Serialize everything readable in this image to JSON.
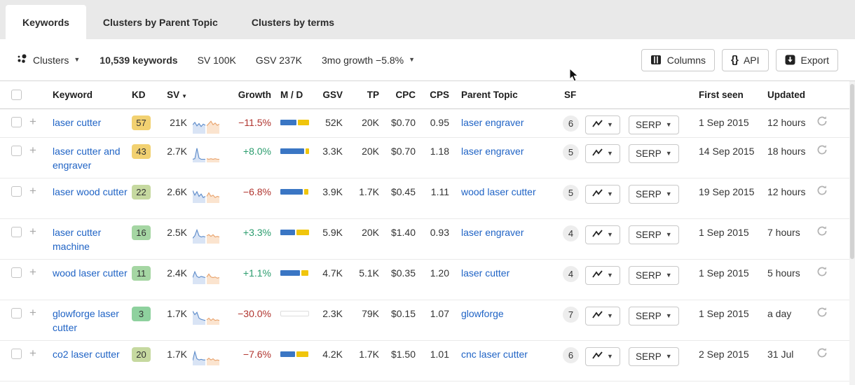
{
  "tabs": [
    {
      "label": "Keywords",
      "active": true
    },
    {
      "label": "Clusters by Parent Topic",
      "active": false
    },
    {
      "label": "Clusters by terms",
      "active": false
    }
  ],
  "toolbar": {
    "clusters_label": "Clusters",
    "keywords_count": "10,539 keywords",
    "sv_total": "SV 100K",
    "gsv_total": "GSV 237K",
    "growth_summary": "3mo growth −5.8%",
    "columns_label": "Columns",
    "api_label": "API",
    "export_label": "Export"
  },
  "table": {
    "serp_label": "SERP",
    "headers": {
      "keyword": "Keyword",
      "kd": "KD",
      "sv": "SV",
      "growth": "Growth",
      "md": "M / D",
      "gsv": "GSV",
      "tp": "TP",
      "cpc": "CPC",
      "cps": "CPS",
      "parent_topic": "Parent Topic",
      "sf": "SF",
      "first_seen": "First seen",
      "updated": "Updated"
    },
    "rows": [
      {
        "keyword": "laser cutter",
        "kd": "57",
        "kd_color": "#f2d171",
        "sv": "21K",
        "growth": "−11.5%",
        "growth_dir": "neg",
        "md": {
          "m": 0.55,
          "d": 0.4
        },
        "gsv": "52K",
        "tp": "20K",
        "cpc": "$0.70",
        "cps": "0.95",
        "parent_topic": "laser engraver",
        "sf": "6",
        "first_seen": "1 Sep 2015",
        "updated": "12 hours",
        "spark": {
          "blue": [
            13,
            17,
            11,
            15,
            10,
            14,
            12
          ],
          "orange": [
            11,
            15,
            19,
            13,
            16,
            12,
            14
          ]
        }
      },
      {
        "keyword": "laser cutter and engraver",
        "kd": "43",
        "kd_color": "#f2d171",
        "sv": "2.7K",
        "growth": "+8.0%",
        "growth_dir": "pos",
        "md": {
          "m": 0.82,
          "d": 0.12
        },
        "gsv": "3.3K",
        "tp": "20K",
        "cpc": "$0.70",
        "cps": "1.18",
        "parent_topic": "laser engraver",
        "sf": "5",
        "first_seen": "14 Sep 2015",
        "updated": "18 hours",
        "spark": {
          "blue": [
            3,
            4,
            22,
            5,
            3,
            3,
            3
          ],
          "orange": [
            4,
            3,
            4,
            3,
            4,
            3,
            3
          ]
        }
      },
      {
        "keyword": "laser wood cutter",
        "kd": "22",
        "kd_color": "#c6d9a0",
        "sv": "2.6K",
        "growth": "−6.8%",
        "growth_dir": "neg",
        "md": {
          "m": 0.78,
          "d": 0.15
        },
        "gsv": "3.9K",
        "tp": "1.7K",
        "cpc": "$0.45",
        "cps": "1.11",
        "parent_topic": "wood laser cutter",
        "sf": "5",
        "first_seen": "19 Sep 2015",
        "updated": "12 hours",
        "spark": {
          "blue": [
            19,
            11,
            17,
            9,
            13,
            7,
            9
          ],
          "orange": [
            9,
            15,
            9,
            11,
            7,
            9,
            8
          ]
        }
      },
      {
        "keyword": "laser cutter machine",
        "kd": "16",
        "kd_color": "#a5d6a3",
        "sv": "2.5K",
        "growth": "+3.3%",
        "growth_dir": "pos",
        "md": {
          "m": 0.52,
          "d": 0.44
        },
        "gsv": "5.9K",
        "tp": "20K",
        "cpc": "$1.40",
        "cps": "0.93",
        "parent_topic": "laser engraver",
        "sf": "4",
        "first_seen": "1 Sep 2015",
        "updated": "7 hours",
        "spark": {
          "blue": [
            7,
            11,
            21,
            11,
            9,
            10,
            9
          ],
          "orange": [
            11,
            13,
            10,
            13,
            9,
            10,
            9
          ]
        }
      },
      {
        "keyword": "wood laser cutter",
        "kd": "11",
        "kd_color": "#a5d6a3",
        "sv": "2.4K",
        "growth": "+1.1%",
        "growth_dir": "pos",
        "md": {
          "m": 0.68,
          "d": 0.25
        },
        "gsv": "4.7K",
        "tp": "5.1K",
        "cpc": "$0.35",
        "cps": "1.20",
        "parent_topic": "laser cutter",
        "sf": "4",
        "first_seen": "1 Sep 2015",
        "updated": "5 hours",
        "spark": {
          "blue": [
            9,
            19,
            11,
            9,
            11,
            10,
            9
          ],
          "orange": [
            10,
            15,
            10,
            9,
            10,
            8,
            9
          ]
        }
      },
      {
        "keyword": "glowforge laser cutter",
        "kd": "3",
        "kd_color": "#8ed19e",
        "sv": "1.7K",
        "growth": "−30.0%",
        "growth_dir": "neg",
        "md": null,
        "gsv": "2.3K",
        "tp": "79K",
        "cpc": "$0.15",
        "cps": "1.07",
        "parent_topic": "glowforge",
        "sf": "7",
        "first_seen": "1 Sep 2015",
        "updated": "a day",
        "spark": {
          "blue": [
            21,
            15,
            19,
            9,
            7,
            6,
            5
          ],
          "orange": [
            6,
            9,
            5,
            8,
            5,
            6,
            5
          ]
        }
      },
      {
        "keyword": "co2 laser cutter",
        "kd": "20",
        "kd_color": "#c6d9a0",
        "sv": "1.7K",
        "growth": "−7.6%",
        "growth_dir": "neg",
        "md": {
          "m": 0.52,
          "d": 0.4
        },
        "gsv": "4.2K",
        "tp": "1.7K",
        "cpc": "$1.50",
        "cps": "1.01",
        "parent_topic": "cnc laser cutter",
        "sf": "6",
        "first_seen": "2 Sep 2015",
        "updated": "31 Jul",
        "spark": {
          "blue": [
            6,
            21,
            9,
            7,
            8,
            7,
            7
          ],
          "orange": [
            7,
            10,
            7,
            9,
            6,
            7,
            6
          ]
        }
      }
    ]
  }
}
